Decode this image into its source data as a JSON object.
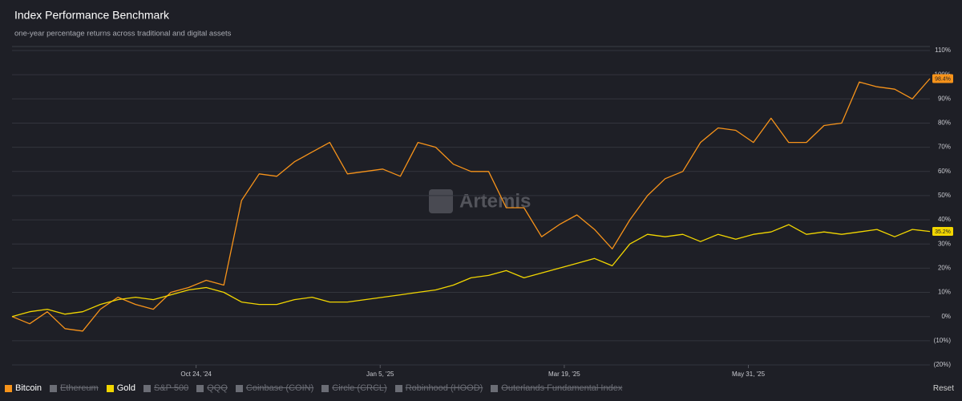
{
  "chart_data": {
    "type": "line",
    "title": "Index Performance Benchmark",
    "subtitle": "one-year percentage returns across traditional and digital assets",
    "watermark": "Artemis",
    "reset_label": "Reset",
    "x": [
      "2024-08-12",
      "2024-08-19",
      "2024-08-26",
      "2024-09-02",
      "2024-09-09",
      "2024-09-16",
      "2024-09-23",
      "2024-09-30",
      "2024-10-07",
      "2024-10-14",
      "2024-10-21",
      "2024-10-28",
      "2024-11-04",
      "2024-11-11",
      "2024-11-18",
      "2024-11-25",
      "2024-12-02",
      "2024-12-09",
      "2024-12-16",
      "2024-12-23",
      "2024-12-30",
      "2025-01-06",
      "2025-01-13",
      "2025-01-20",
      "2025-01-27",
      "2025-02-03",
      "2025-02-10",
      "2025-02-17",
      "2025-02-24",
      "2025-03-03",
      "2025-03-10",
      "2025-03-17",
      "2025-03-24",
      "2025-03-31",
      "2025-04-07",
      "2025-04-14",
      "2025-04-21",
      "2025-04-28",
      "2025-05-05",
      "2025-05-12",
      "2025-05-19",
      "2025-05-26",
      "2025-06-02",
      "2025-06-09",
      "2025-06-16",
      "2025-06-23",
      "2025-06-30",
      "2025-07-07",
      "2025-07-14",
      "2025-07-21",
      "2025-07-28",
      "2025-08-04",
      "2025-08-11"
    ],
    "xlim": [
      "2024-08-12",
      "2025-08-11"
    ],
    "xticks": [
      {
        "value": "2024-10-24",
        "label": "Oct 24, '24"
      },
      {
        "value": "2025-01-05",
        "label": "Jan 5, '25"
      },
      {
        "value": "2025-03-19",
        "label": "Mar 19, '25"
      },
      {
        "value": "2025-05-31",
        "label": "May 31, '25"
      }
    ],
    "ylim": [
      -20,
      110
    ],
    "yticks": [
      {
        "value": 110,
        "label": "110%"
      },
      {
        "value": 100,
        "label": "100%"
      },
      {
        "value": 90,
        "label": "90%"
      },
      {
        "value": 80,
        "label": "80%"
      },
      {
        "value": 70,
        "label": "70%"
      },
      {
        "value": 60,
        "label": "60%"
      },
      {
        "value": 50,
        "label": "50%"
      },
      {
        "value": 40,
        "label": "40%"
      },
      {
        "value": 30,
        "label": "30%"
      },
      {
        "value": 20,
        "label": "20%"
      },
      {
        "value": 10,
        "label": "10%"
      },
      {
        "value": 0,
        "label": "0%"
      },
      {
        "value": -10,
        "label": "(10%)"
      },
      {
        "value": -20,
        "label": "(20%)"
      }
    ],
    "grid": true,
    "series": [
      {
        "name": "Bitcoin",
        "color": "#f7931a",
        "visible": true,
        "values": [
          0,
          -3,
          2,
          -5,
          -6,
          3,
          8,
          5,
          3,
          10,
          12,
          15,
          13,
          48,
          59,
          58,
          64,
          68,
          72,
          59,
          60,
          61,
          58,
          72,
          70,
          63,
          60,
          60,
          45,
          45,
          33,
          38,
          42,
          36,
          28,
          40,
          50,
          57,
          60,
          72,
          78,
          77,
          72,
          82,
          72,
          72,
          79,
          80,
          97,
          95,
          94,
          90,
          98.4
        ],
        "value_labels": [
          null,
          null,
          null,
          null,
          null,
          null,
          null,
          null,
          null,
          null,
          null,
          null,
          null,
          null,
          null,
          null,
          null,
          null,
          null,
          null,
          null,
          null,
          null,
          null,
          null,
          null,
          null,
          null,
          null,
          null,
          null,
          null,
          null,
          null,
          null,
          null,
          null,
          null,
          null,
          null,
          null,
          null,
          null,
          null,
          null,
          null,
          null,
          null,
          null,
          null,
          null,
          null,
          "98.4%"
        ]
      },
      {
        "name": "Ethereum",
        "color": "#6b6d75",
        "visible": false
      },
      {
        "name": "Gold",
        "color": "#f2d600",
        "visible": true,
        "values": [
          0,
          2,
          3,
          1,
          2,
          5,
          7,
          8,
          7,
          9,
          11,
          12,
          10,
          6,
          5,
          5,
          7,
          8,
          6,
          6,
          7,
          8,
          9,
          10,
          11,
          13,
          16,
          17,
          19,
          16,
          18,
          20,
          22,
          24,
          21,
          30,
          34,
          33,
          34,
          31,
          34,
          32,
          34,
          35,
          38,
          34,
          35,
          34,
          35,
          36,
          33,
          36,
          35.2
        ],
        "value_labels": [
          null,
          null,
          null,
          null,
          null,
          null,
          null,
          null,
          null,
          null,
          null,
          null,
          null,
          null,
          null,
          null,
          null,
          null,
          null,
          null,
          null,
          null,
          null,
          null,
          null,
          null,
          null,
          null,
          null,
          null,
          null,
          null,
          null,
          null,
          null,
          null,
          null,
          null,
          null,
          null,
          null,
          null,
          null,
          null,
          null,
          null,
          null,
          null,
          null,
          null,
          null,
          null,
          "35.2%"
        ]
      },
      {
        "name": "S&P 500",
        "color": "#6b6d75",
        "visible": false
      },
      {
        "name": "QQQ",
        "color": "#6b6d75",
        "visible": false
      },
      {
        "name": "Coinbase (COIN)",
        "color": "#6b6d75",
        "visible": false
      },
      {
        "name": "Circle (CRCL)",
        "color": "#6b6d75",
        "visible": false
      },
      {
        "name": "Robinhood (HOOD)",
        "color": "#6b6d75",
        "visible": false
      },
      {
        "name": "Outerlands Fundamental Index",
        "color": "#6b6d75",
        "visible": false
      }
    ]
  }
}
